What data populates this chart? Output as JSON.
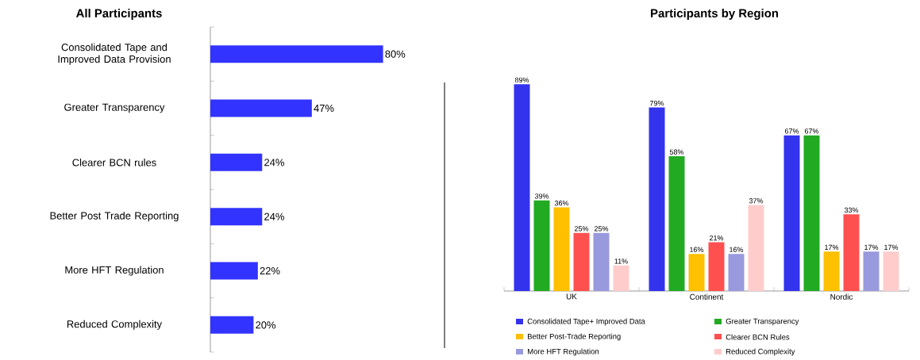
{
  "chart_data": [
    {
      "type": "bar",
      "title": "All Participants",
      "orientation": "horizontal",
      "categories": [
        "Consolidated Tape and Improved Data Provision",
        "Greater Transparency",
        "Clearer BCN rules",
        "Better Post Trade Reporting",
        "More HFT Regulation",
        "Reduced Complexity"
      ],
      "values": [
        80,
        47,
        24,
        24,
        22,
        20
      ],
      "value_labels": [
        "80%",
        "47%",
        "24%",
        "24%",
        "22%",
        "20%"
      ],
      "color": "#3333ff"
    },
    {
      "type": "bar",
      "title": "Participants by Region",
      "categories": [
        "UK",
        "Continent",
        "Nordic"
      ],
      "legend": "bottom",
      "series": [
        {
          "name": "Consolidated Tape+ Improved Data",
          "color": "#3333ee",
          "values": [
            89,
            79,
            67
          ],
          "value_labels": [
            "89%",
            "79%",
            "67%"
          ]
        },
        {
          "name": "Greater Transparency",
          "color": "#22aa22",
          "values": [
            39,
            58,
            67
          ],
          "value_labels": [
            "39%",
            "58%",
            "67%"
          ]
        },
        {
          "name": "Better Post-Trade Reporting",
          "color": "#ffc000",
          "values": [
            36,
            16,
            17
          ],
          "value_labels": [
            "36%",
            "16%",
            "17%"
          ]
        },
        {
          "name": "Clearer BCN Rules",
          "color": "#ff5050",
          "values": [
            25,
            21,
            33
          ],
          "value_labels": [
            "25%",
            "21%",
            "33%"
          ]
        },
        {
          "name": "More HFT Regulation",
          "color": "#9999dd",
          "values": [
            25,
            16,
            17
          ],
          "value_labels": [
            "25%",
            "16%",
            "17%"
          ]
        },
        {
          "name": "Reduced Complexity",
          "color": "#ffcccc",
          "values": [
            11,
            37,
            17
          ],
          "value_labels": [
            "11%",
            "37%",
            "17%"
          ]
        }
      ]
    }
  ]
}
